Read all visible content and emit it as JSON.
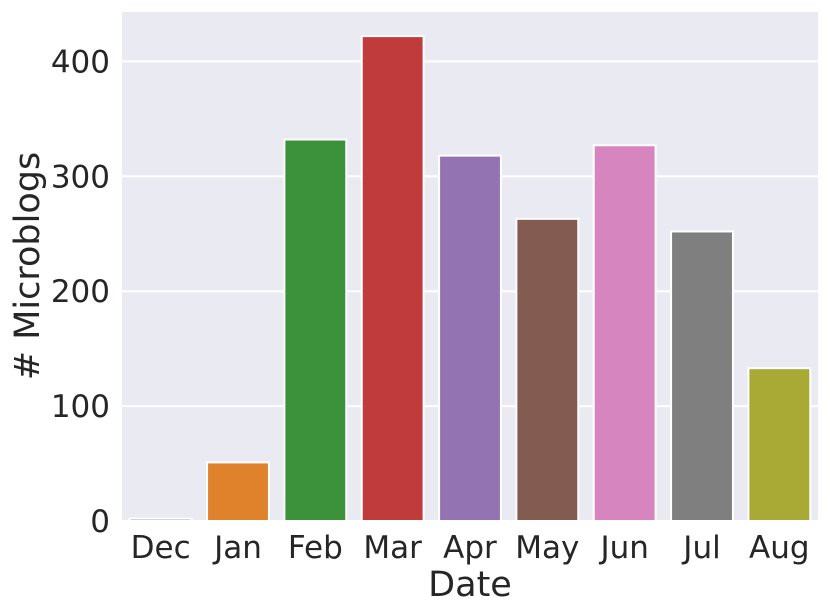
{
  "chart_data": {
    "type": "bar",
    "title": "",
    "xlabel": "Date",
    "ylabel": "# Microblogs",
    "categories": [
      "Dec",
      "Jan",
      "Feb",
      "Mar",
      "Apr",
      "May",
      "Jun",
      "Jul",
      "Aug"
    ],
    "values": [
      2,
      51,
      332,
      422,
      318,
      263,
      327,
      252,
      133
    ],
    "colors": [
      "#4c72b0",
      "#e0812b",
      "#3b923b",
      "#c03c3c",
      "#9473b2",
      "#835b51",
      "#d685bf",
      "#7f7f7f",
      "#a9a935"
    ],
    "ylim": [
      0,
      443
    ],
    "yticks": [
      0,
      100,
      200,
      300,
      400
    ],
    "background": "#eaeaf2",
    "grid": true
  }
}
